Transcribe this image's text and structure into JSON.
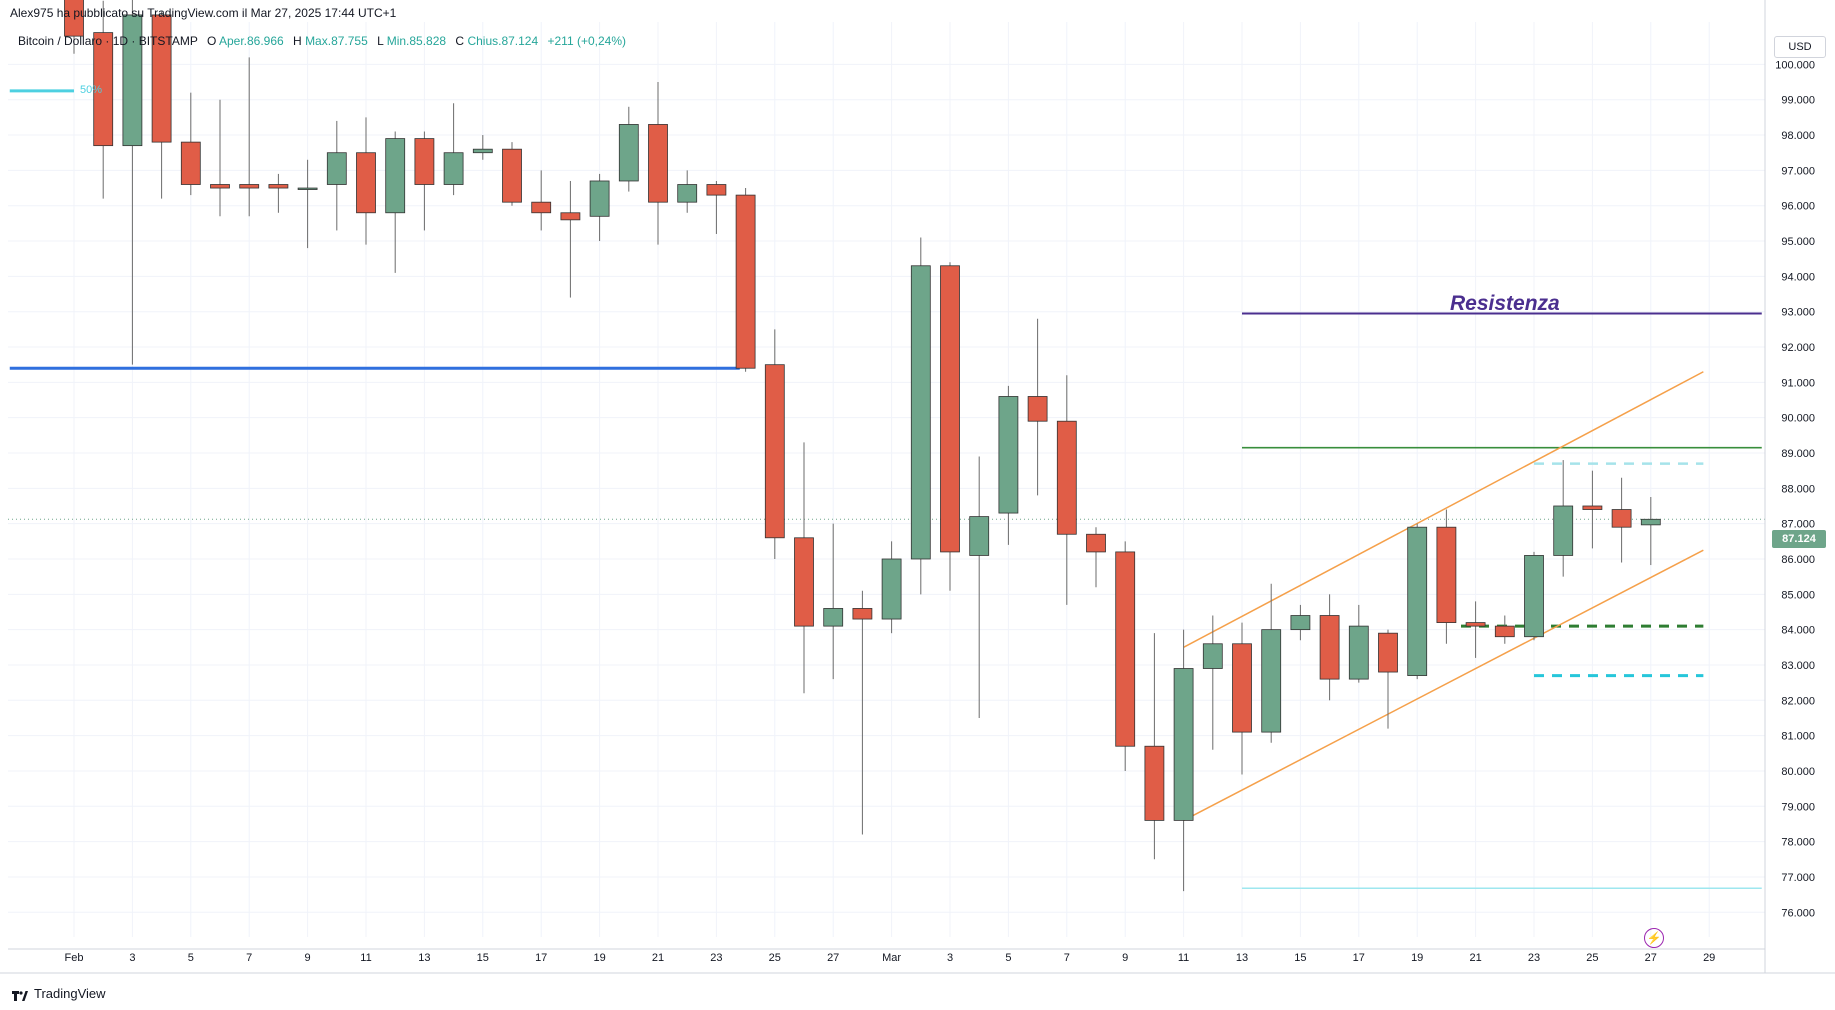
{
  "header": {
    "published_by": "Alex975 ha pubblicato su TradingView.com il Mar 27, 2025 17:44 UTC+1"
  },
  "legend": {
    "symbol": "Bitcoin / Dollaro · 1D · BITSTAMP",
    "open_label": "O",
    "open_value": "Aper.86.966",
    "high_label": "H",
    "high_value": "Max.87.755",
    "low_label": "L",
    "low_value": "Min.85.828",
    "close_label": "C",
    "close_value": "Chius.87.124",
    "change": "+211 (+0,24%)"
  },
  "currency_button": "USD",
  "footer": {
    "brand": "TradingView"
  },
  "annotation_label": "Resistenza",
  "fib_label": "50%",
  "colors": {
    "up": "#6ea58a",
    "down": "#e05d47",
    "wick": "#6b6b6b",
    "grid": "#f0f3fa",
    "support_blue": "#2f6fde",
    "resistance_purple": "#4b2f8f",
    "green_line": "#388e3c",
    "channel": "#f5a04a",
    "cyan": "#4dd0e1",
    "dashed_green": "#2e7d32"
  },
  "chart_data": {
    "type": "candlestick",
    "symbol": "Bitcoin / Dollaro",
    "timeframe": "1D",
    "exchange": "BITSTAMP",
    "currency": "USD",
    "last_price": "87.124",
    "y_ticks": [
      "76.000",
      "77.000",
      "78.000",
      "79.000",
      "80.000",
      "81.000",
      "82.000",
      "83.000",
      "84.000",
      "85.000",
      "86.000",
      "87.000",
      "88.000",
      "89.000",
      "90.000",
      "91.000",
      "92.000",
      "93.000",
      "94.000",
      "95.000",
      "96.000",
      "97.000",
      "98.000",
      "99.000",
      "100.000"
    ],
    "ylim": [
      75.3,
      101.2
    ],
    "x_tick_labels": [
      "Feb",
      "3",
      "5",
      "7",
      "9",
      "11",
      "13",
      "15",
      "17",
      "19",
      "21",
      "23",
      "25",
      "27",
      "Mar",
      "3",
      "5",
      "7",
      "9",
      "11",
      "13",
      "15",
      "17",
      "19",
      "21",
      "23",
      "25",
      "27",
      "29"
    ],
    "candles": [
      {
        "date": "2025-02-01",
        "o": 102.0,
        "h": 102.5,
        "l": 100.3,
        "c": 100.8
      },
      {
        "date": "2025-02-02",
        "o": 100.9,
        "h": 101.8,
        "l": 96.2,
        "c": 97.7
      },
      {
        "date": "2025-02-03",
        "o": 97.7,
        "h": 102.0,
        "l": 91.5,
        "c": 101.4
      },
      {
        "date": "2025-02-04",
        "o": 101.4,
        "h": 101.5,
        "l": 96.2,
        "c": 97.8
      },
      {
        "date": "2025-02-05",
        "o": 97.8,
        "h": 99.2,
        "l": 96.3,
        "c": 96.6
      },
      {
        "date": "2025-02-06",
        "o": 96.6,
        "h": 99.0,
        "l": 95.7,
        "c": 96.5
      },
      {
        "date": "2025-02-07",
        "o": 96.6,
        "h": 100.2,
        "l": 95.7,
        "c": 96.5
      },
      {
        "date": "2025-02-08",
        "o": 96.6,
        "h": 96.9,
        "l": 95.8,
        "c": 96.5
      },
      {
        "date": "2025-02-09",
        "o": 96.5,
        "h": 97.3,
        "l": 94.8,
        "c": 96.5
      },
      {
        "date": "2025-02-10",
        "o": 96.6,
        "h": 98.4,
        "l": 95.3,
        "c": 97.5
      },
      {
        "date": "2025-02-11",
        "o": 97.5,
        "h": 98.5,
        "l": 94.9,
        "c": 95.8
      },
      {
        "date": "2025-02-12",
        "o": 95.8,
        "h": 98.1,
        "l": 94.1,
        "c": 97.9
      },
      {
        "date": "2025-02-13",
        "o": 97.9,
        "h": 98.1,
        "l": 95.3,
        "c": 96.6
      },
      {
        "date": "2025-02-14",
        "o": 96.6,
        "h": 98.9,
        "l": 96.3,
        "c": 97.5
      },
      {
        "date": "2025-02-15",
        "o": 97.5,
        "h": 98.0,
        "l": 97.3,
        "c": 97.6
      },
      {
        "date": "2025-02-16",
        "o": 97.6,
        "h": 97.8,
        "l": 96.0,
        "c": 96.1
      },
      {
        "date": "2025-02-17",
        "o": 96.1,
        "h": 97.0,
        "l": 95.3,
        "c": 95.8
      },
      {
        "date": "2025-02-18",
        "o": 95.8,
        "h": 96.7,
        "l": 93.4,
        "c": 95.6
      },
      {
        "date": "2025-02-19",
        "o": 95.7,
        "h": 96.9,
        "l": 95.0,
        "c": 96.7
      },
      {
        "date": "2025-02-20",
        "o": 96.7,
        "h": 98.8,
        "l": 96.4,
        "c": 98.3
      },
      {
        "date": "2025-02-21",
        "o": 98.3,
        "h": 99.5,
        "l": 94.9,
        "c": 96.1
      },
      {
        "date": "2025-02-22",
        "o": 96.1,
        "h": 97.0,
        "l": 95.8,
        "c": 96.6
      },
      {
        "date": "2025-02-23",
        "o": 96.6,
        "h": 96.7,
        "l": 95.2,
        "c": 96.3
      },
      {
        "date": "2025-02-24",
        "o": 96.3,
        "h": 96.5,
        "l": 91.3,
        "c": 91.4
      },
      {
        "date": "2025-02-25",
        "o": 91.5,
        "h": 92.5,
        "l": 86.0,
        "c": 86.6
      },
      {
        "date": "2025-02-26",
        "o": 86.6,
        "h": 89.3,
        "l": 82.2,
        "c": 84.1
      },
      {
        "date": "2025-02-27",
        "o": 84.1,
        "h": 87.0,
        "l": 82.6,
        "c": 84.6
      },
      {
        "date": "2025-02-28",
        "o": 84.6,
        "h": 85.1,
        "l": 78.2,
        "c": 84.3
      },
      {
        "date": "2025-03-01",
        "o": 84.3,
        "h": 86.5,
        "l": 83.9,
        "c": 86.0
      },
      {
        "date": "2025-03-02",
        "o": 86.0,
        "h": 95.1,
        "l": 85.0,
        "c": 94.3
      },
      {
        "date": "2025-03-03",
        "o": 94.3,
        "h": 94.4,
        "l": 85.1,
        "c": 86.2
      },
      {
        "date": "2025-03-04",
        "o": 86.1,
        "h": 88.9,
        "l": 81.5,
        "c": 87.2
      },
      {
        "date": "2025-03-05",
        "o": 87.3,
        "h": 90.9,
        "l": 86.4,
        "c": 90.6
      },
      {
        "date": "2025-03-06",
        "o": 90.6,
        "h": 92.8,
        "l": 87.8,
        "c": 89.9
      },
      {
        "date": "2025-03-07",
        "o": 89.9,
        "h": 91.2,
        "l": 84.7,
        "c": 86.7
      },
      {
        "date": "2025-03-08",
        "o": 86.7,
        "h": 86.9,
        "l": 85.2,
        "c": 86.2
      },
      {
        "date": "2025-03-09",
        "o": 86.2,
        "h": 86.5,
        "l": 80.0,
        "c": 80.7
      },
      {
        "date": "2025-03-10",
        "o": 80.7,
        "h": 83.9,
        "l": 77.5,
        "c": 78.6
      },
      {
        "date": "2025-03-11",
        "o": 78.6,
        "h": 84.0,
        "l": 76.6,
        "c": 82.9
      },
      {
        "date": "2025-03-12",
        "o": 82.9,
        "h": 84.4,
        "l": 80.6,
        "c": 83.6
      },
      {
        "date": "2025-03-13",
        "o": 83.6,
        "h": 84.2,
        "l": 79.9,
        "c": 81.1
      },
      {
        "date": "2025-03-14",
        "o": 81.1,
        "h": 85.3,
        "l": 80.8,
        "c": 84.0
      },
      {
        "date": "2025-03-15",
        "o": 84.0,
        "h": 84.7,
        "l": 83.7,
        "c": 84.4
      },
      {
        "date": "2025-03-16",
        "o": 84.4,
        "h": 85.0,
        "l": 82.0,
        "c": 82.6
      },
      {
        "date": "2025-03-17",
        "o": 82.6,
        "h": 84.7,
        "l": 82.5,
        "c": 84.1
      },
      {
        "date": "2025-03-18",
        "o": 83.9,
        "h": 84.0,
        "l": 81.2,
        "c": 82.8
      },
      {
        "date": "2025-03-19",
        "o": 82.7,
        "h": 87.0,
        "l": 82.6,
        "c": 86.9
      },
      {
        "date": "2025-03-20",
        "o": 86.9,
        "h": 87.4,
        "l": 83.6,
        "c": 84.2
      },
      {
        "date": "2025-03-21",
        "o": 84.2,
        "h": 84.8,
        "l": 83.2,
        "c": 84.1
      },
      {
        "date": "2025-03-22",
        "o": 84.1,
        "h": 84.4,
        "l": 83.6,
        "c": 83.8
      },
      {
        "date": "2025-03-23",
        "o": 83.8,
        "h": 86.2,
        "l": 83.7,
        "c": 86.1
      },
      {
        "date": "2025-03-24",
        "o": 86.1,
        "h": 88.8,
        "l": 85.5,
        "c": 87.5
      },
      {
        "date": "2025-03-25",
        "o": 87.5,
        "h": 88.5,
        "l": 86.3,
        "c": 87.4
      },
      {
        "date": "2025-03-26",
        "o": 87.4,
        "h": 88.3,
        "l": 85.9,
        "c": 86.9
      },
      {
        "date": "2025-03-27",
        "o": 86.966,
        "h": 87.755,
        "l": 85.828,
        "c": 87.124
      }
    ]
  }
}
